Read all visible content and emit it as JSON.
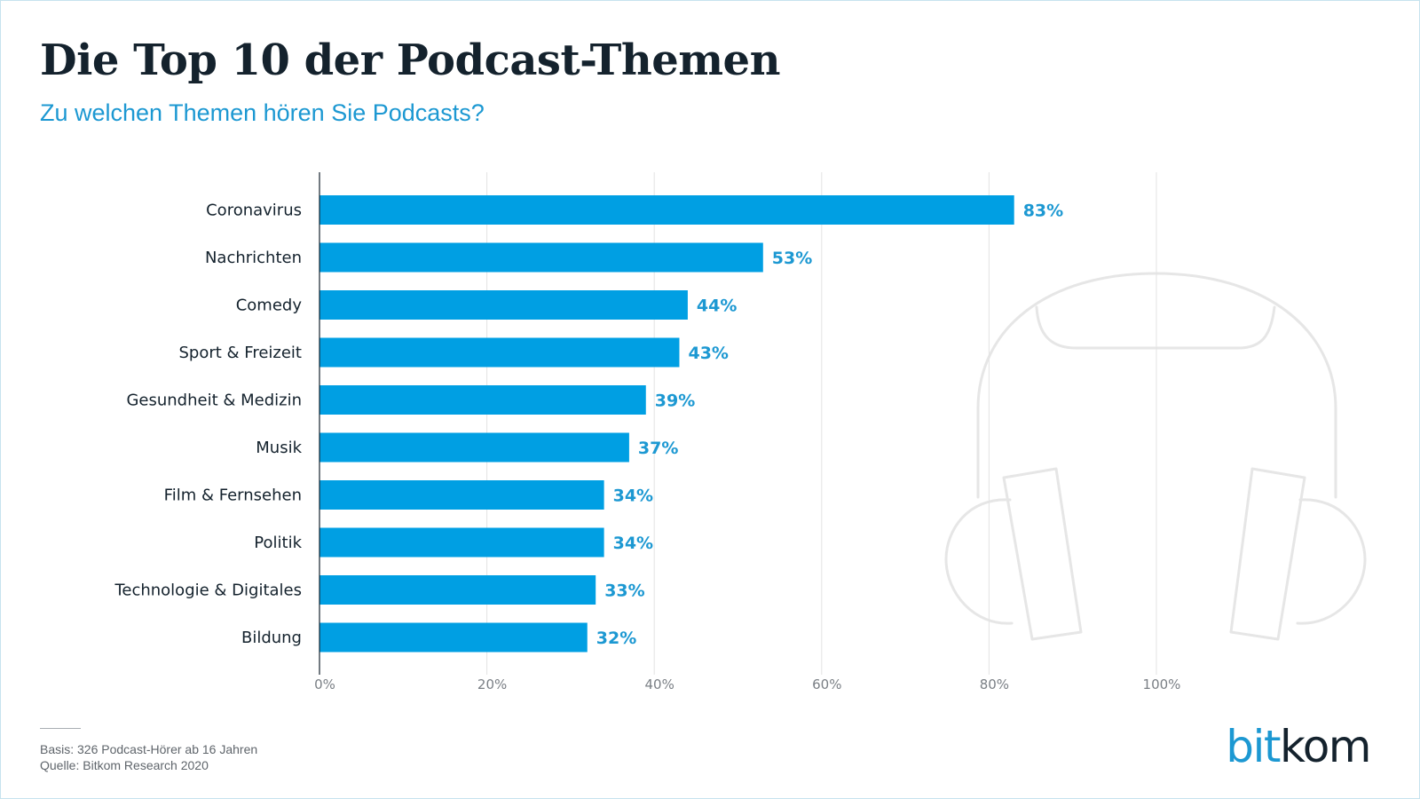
{
  "title": "Die Top 10 der Podcast-Themen",
  "subtitle": "Zu welchen Themen hören Sie Podcasts?",
  "footnote": {
    "basis": "Basis: 326 Podcast-Hörer ab 16 Jahren",
    "source": "Quelle: Bitkom Research 2020"
  },
  "logo": {
    "part1": "bit",
    "part2": "kom"
  },
  "colors": {
    "bar": "#009fe3",
    "value_label": "#1c98d2",
    "grid": "#e3e3e3",
    "axis": "#14222d",
    "decoration": "#e6e6e6"
  },
  "chart_data": {
    "type": "bar",
    "orientation": "horizontal",
    "categories": [
      "Coronavirus",
      "Nachrichten",
      "Comedy",
      "Sport & Freizeit",
      "Gesundheit & Medizin",
      "Musik",
      "Film & Fernsehen",
      "Politik",
      "Technologie & Digitales",
      "Bildung"
    ],
    "values": [
      83,
      53,
      44,
      43,
      39,
      37,
      34,
      34,
      33,
      32
    ],
    "value_labels": [
      "83%",
      "53%",
      "44%",
      "43%",
      "39%",
      "37%",
      "34%",
      "34%",
      "33%",
      "32%"
    ],
    "xlim": [
      0,
      100
    ],
    "xticks": [
      0,
      20,
      40,
      60,
      80,
      100
    ],
    "xtick_labels": [
      "0%",
      "20%",
      "40%",
      "60%",
      "80%",
      "100%"
    ],
    "grid": true,
    "legend": "none",
    "decoration": "headphones-icon"
  }
}
